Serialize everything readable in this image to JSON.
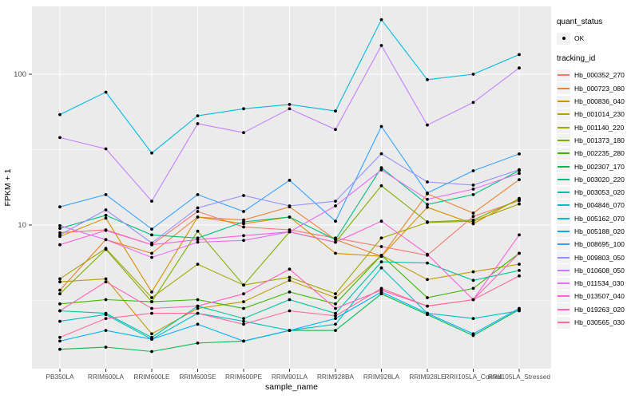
{
  "chart_data": {
    "type": "line",
    "title": "",
    "xlabel": "sample_name",
    "ylabel": "FPKM + 1",
    "y_scale": "log10",
    "y_ticks": [
      10,
      100
    ],
    "y_minor_breaks": [
      3.162,
      31.62
    ],
    "ylim": [
      1.1,
      290
    ],
    "grid": true,
    "legend_position": "right",
    "panel_bg": "#EBEBEB",
    "grid_color": "#FFFFFF",
    "point_color": "#000000",
    "axis_text_color": "#4D4D4D",
    "categories": [
      "PB350LA",
      "RRIM600LA",
      "RRIM600LE",
      "RRIM600SE",
      "RRIM600PE",
      "RRIM901LA",
      "RRIM928BA",
      "RRIM928LA",
      "RRIM928LE",
      "RRII105LA_Control",
      "RRII105LA_Stressed"
    ],
    "series": [
      {
        "name": "Hb_000352_270",
        "color": "#F8766D",
        "values": [
          8.9,
          9.3,
          7.4,
          12.3,
          9.7,
          9.3,
          8.2,
          7.2,
          6.3,
          11.4,
          14.5
        ]
      },
      {
        "name": "Hb_000723_080",
        "color": "#EA8331",
        "values": [
          3.7,
          8.0,
          6.5,
          11.3,
          10.8,
          13.2,
          8.0,
          6.2,
          16.1,
          12.0,
          20.0
        ]
      },
      {
        "name": "Hb_000836_040",
        "color": "#D89000",
        "values": [
          8.4,
          11.1,
          3.6,
          11.3,
          10.2,
          11.3,
          6.5,
          6.2,
          13.1,
          10.2,
          15.0
        ]
      },
      {
        "name": "Hb_001014_230",
        "color": "#C09B00",
        "values": [
          4.2,
          4.4,
          1.9,
          2.8,
          3.1,
          4.3,
          3.3,
          6.3,
          4.35,
          4.9,
          5.5
        ]
      },
      {
        "name": "Hb_001140_220",
        "color": "#A3A500",
        "values": [
          4.4,
          7.0,
          3.3,
          5.5,
          4.0,
          4.5,
          3.5,
          8.2,
          10.4,
          10.6,
          13.8
        ]
      },
      {
        "name": "Hb_001373_180",
        "color": "#7CAE00",
        "values": [
          3.5,
          6.9,
          3.1,
          9.1,
          4.0,
          9.0,
          7.7,
          18.2,
          10.5,
          10.8,
          14.8
        ]
      },
      {
        "name": "Hb_002235_280",
        "color": "#39B600",
        "values": [
          3.0,
          3.2,
          3.1,
          3.2,
          2.8,
          3.6,
          3.0,
          6.3,
          3.3,
          3.8,
          6.5
        ]
      },
      {
        "name": "Hb_002307_170",
        "color": "#00BB4E",
        "values": [
          1.5,
          1.55,
          1.45,
          1.65,
          1.7,
          2.0,
          2.0,
          3.5,
          2.55,
          1.85,
          2.75
        ]
      },
      {
        "name": "Hb_003020_220",
        "color": "#00BF7D",
        "values": [
          9.5,
          11.6,
          8.6,
          8.2,
          10.5,
          11.3,
          8.0,
          24.0,
          13.7,
          15.9,
          23.0
        ]
      },
      {
        "name": "Hb_003053_020",
        "color": "#00C1A3",
        "values": [
          2.7,
          2.6,
          1.8,
          2.9,
          2.4,
          3.2,
          2.6,
          5.7,
          5.6,
          4.3,
          5.0
        ]
      },
      {
        "name": "Hb_004846_070",
        "color": "#00BFC4",
        "values": [
          2.3,
          2.55,
          1.75,
          2.6,
          2.3,
          2.0,
          2.2,
          5.2,
          2.6,
          2.4,
          2.7
        ]
      },
      {
        "name": "Hb_005162_070",
        "color": "#00BAE0",
        "values": [
          54,
          76,
          30,
          53,
          59,
          63,
          57,
          230,
          92,
          100,
          135
        ]
      },
      {
        "name": "Hb_005188_020",
        "color": "#00B0F6",
        "values": [
          1.7,
          2.0,
          1.75,
          2.2,
          1.7,
          2.0,
          2.4,
          3.6,
          2.6,
          1.9,
          2.8
        ]
      },
      {
        "name": "Hb_008695_100",
        "color": "#35A2FF",
        "values": [
          13.2,
          15.9,
          9.4,
          15.9,
          12.3,
          19.8,
          10.6,
          45,
          16.3,
          22.9,
          29.6
        ]
      },
      {
        "name": "Hb_009803_050",
        "color": "#9590FF",
        "values": [
          8.6,
          12.6,
          7.6,
          13.0,
          15.7,
          13.4,
          14.4,
          29.7,
          19.3,
          18.4,
          23.3
        ]
      },
      {
        "name": "Hb_010608_050",
        "color": "#C77CFF",
        "values": [
          38,
          32,
          14.4,
          47,
          41,
          59,
          43,
          155,
          46,
          65,
          110
        ]
      },
      {
        "name": "Hb_011534_030",
        "color": "#E76BF3",
        "values": [
          9.9,
          8.0,
          6.1,
          7.7,
          7.9,
          9.0,
          13.4,
          23.2,
          14.8,
          17.3,
          22.0
        ]
      },
      {
        "name": "Hb_013507_040",
        "color": "#FA62DB",
        "values": [
          7.4,
          9.2,
          7.4,
          8.0,
          8.5,
          9.0,
          7.7,
          10.6,
          6.4,
          3.2,
          8.6
        ]
      },
      {
        "name": "Hb_019263_020",
        "color": "#FF62BC",
        "values": [
          2.7,
          4.2,
          2.8,
          2.9,
          3.5,
          5.1,
          2.8,
          3.7,
          2.9,
          3.2,
          6.5
        ]
      },
      {
        "name": "Hb_030565_030",
        "color": "#FF6A98",
        "values": [
          1.8,
          2.4,
          2.6,
          2.6,
          2.2,
          2.7,
          2.5,
          3.8,
          2.9,
          3.2,
          4.6
        ]
      }
    ],
    "legend": {
      "quant_status": {
        "title": "quant_status",
        "entries": [
          {
            "label": "OK",
            "symbol": "point"
          }
        ]
      },
      "tracking_id": {
        "title": "tracking_id"
      }
    }
  }
}
